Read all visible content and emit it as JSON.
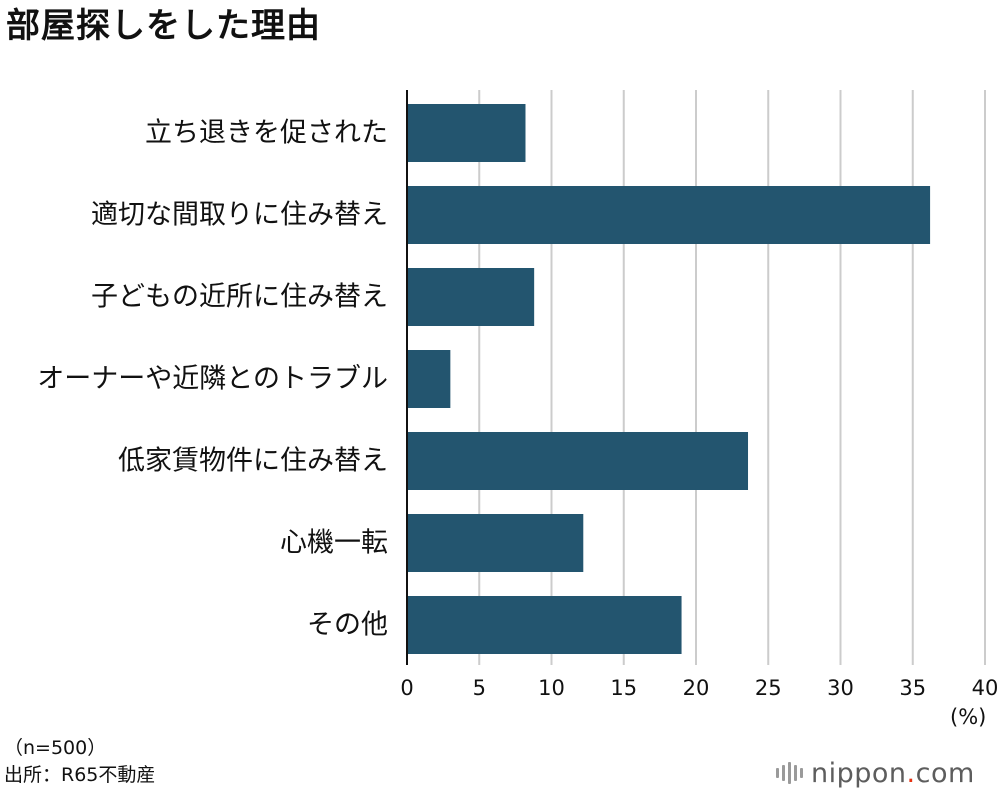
{
  "page": {
    "title": "部屋探しをした理由",
    "unit_label": "(%)",
    "sample_note": "（n=500）",
    "source_note": "出所：R65不動産",
    "brand": {
      "name": "nippon",
      "dot": ".",
      "tld": "com"
    }
  },
  "colors": {
    "bar": "#23556f",
    "grid": "#cccccc",
    "axis": "#111111",
    "brand_dot": "#e63312"
  },
  "chart_data": {
    "type": "bar",
    "orientation": "horizontal",
    "title": "部屋探しをした理由",
    "categories": [
      "立ち退きを促された",
      "適切な間取りに住み替え",
      "子どもの近所に住み替え",
      "オーナーや近隣とのトラブル",
      "低家賃物件に住み替え",
      "心機一転",
      "その他"
    ],
    "values": [
      8.2,
      36.2,
      8.8,
      3.0,
      23.6,
      12.2,
      19.0
    ],
    "xlim": [
      0,
      40
    ],
    "xticks": [
      0,
      5,
      10,
      15,
      20,
      25,
      30,
      35,
      40
    ],
    "xlabel": "(%)",
    "grid": true
  }
}
